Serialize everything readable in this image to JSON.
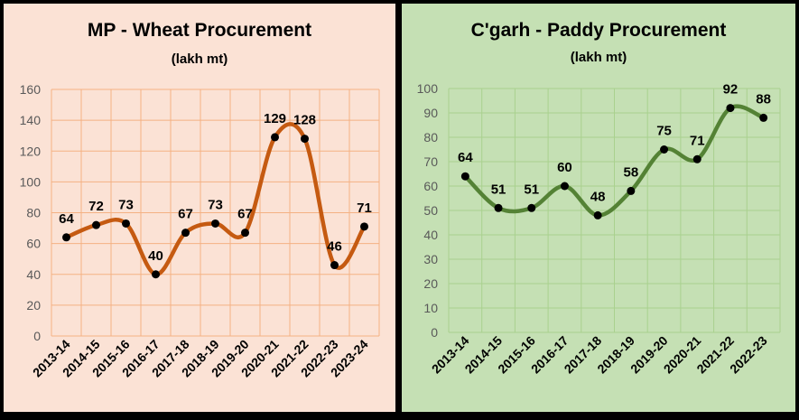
{
  "chart_data": [
    {
      "type": "line",
      "title": "MP - Wheat Procurement",
      "subtitle": "(lakh mt)",
      "categories": [
        "2013-14",
        "2014-15",
        "2015-16",
        "2016-17",
        "2017-18",
        "2018-19",
        "2019-20",
        "2020-21",
        "2021-22",
        "2022-23",
        "2023-24"
      ],
      "values": [
        64,
        72,
        73,
        40,
        67,
        73,
        67,
        129,
        128,
        46,
        71
      ],
      "ylim": [
        0,
        160
      ],
      "yticks": [
        0,
        20,
        40,
        60,
        80,
        100,
        120,
        140,
        160
      ],
      "grid": true,
      "smooth": true,
      "colors": {
        "background": "#FBE2D5",
        "line": "#C55A11",
        "grid": "#F4B183",
        "marker": "#000000"
      }
    },
    {
      "type": "line",
      "title": "C'garh - Paddy Procurement",
      "subtitle": "(lakh mt)",
      "categories": [
        "2013-14",
        "2014-15",
        "2015-16",
        "2016-17",
        "2017-18",
        "2018-19",
        "2019-20",
        "2020-21",
        "2021-22",
        "2022-23"
      ],
      "values": [
        64,
        51,
        51,
        60,
        48,
        58,
        75,
        71,
        92,
        88
      ],
      "ylim": [
        0,
        100
      ],
      "yticks": [
        0,
        10,
        20,
        30,
        40,
        50,
        60,
        70,
        80,
        90,
        100
      ],
      "grid": true,
      "smooth": true,
      "colors": {
        "background": "#C5E0B4",
        "line": "#548235",
        "grid": "#A9D18E",
        "marker": "#000000"
      }
    }
  ]
}
